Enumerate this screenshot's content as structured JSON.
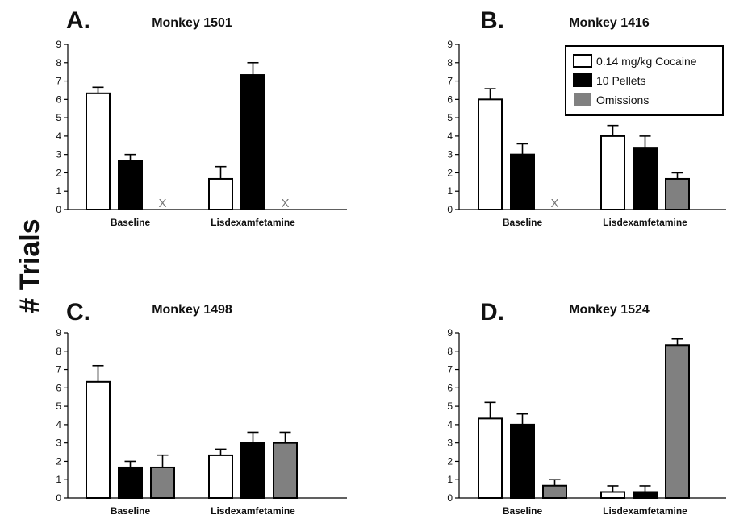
{
  "figure": {
    "ylabel": "# Trials",
    "legend": {
      "entries": [
        {
          "label": "0.14 mg/kg Cocaine",
          "color": "#ffffff"
        },
        {
          "label": "10 Pellets",
          "color": "#000000"
        },
        {
          "label": "Omissions",
          "color": "#808080"
        }
      ]
    }
  },
  "chart_data": [
    {
      "type": "bar",
      "panel_label": "A.",
      "title": "Monkey 1501",
      "categories": [
        "Baseline",
        "Lisdexamfetamine"
      ],
      "ylim": [
        0,
        9
      ],
      "yticks": [
        "0",
        "1",
        "2",
        "3",
        "4",
        "5",
        "6",
        "7",
        "8",
        "9"
      ],
      "series": [
        {
          "name": "0.14 mg/kg Cocaine",
          "color": "#ffffff",
          "values": [
            6.33,
            1.67
          ],
          "errors": [
            0.33,
            0.67
          ]
        },
        {
          "name": "10 Pellets",
          "color": "#000000",
          "values": [
            2.67,
            7.33
          ],
          "errors": [
            0.33,
            0.67
          ]
        },
        {
          "name": "Omissions",
          "color": "#808080",
          "values": [
            null,
            null
          ],
          "errors": [
            null,
            null
          ],
          "missing_marker": "X"
        }
      ]
    },
    {
      "type": "bar",
      "panel_label": "B.",
      "title": "Monkey 1416",
      "categories": [
        "Baseline",
        "Lisdexamfetamine"
      ],
      "ylim": [
        0,
        9
      ],
      "yticks": [
        "0",
        "1",
        "2",
        "3",
        "4",
        "5",
        "6",
        "7",
        "8",
        "9"
      ],
      "legend": "top-right",
      "series": [
        {
          "name": "0.14 mg/kg Cocaine",
          "color": "#ffffff",
          "values": [
            6.0,
            4.0
          ],
          "errors": [
            0.58,
            0.58
          ]
        },
        {
          "name": "10 Pellets",
          "color": "#000000",
          "values": [
            3.0,
            3.33
          ],
          "errors": [
            0.58,
            0.67
          ]
        },
        {
          "name": "Omissions",
          "color": "#808080",
          "values": [
            null,
            1.67
          ],
          "errors": [
            null,
            0.33
          ],
          "missing_marker": "X"
        }
      ]
    },
    {
      "type": "bar",
      "panel_label": "C.",
      "title": "Monkey 1498",
      "categories": [
        "Baseline",
        "Lisdexamfetamine"
      ],
      "ylim": [
        0,
        9
      ],
      "yticks": [
        "0",
        "1",
        "2",
        "3",
        "4",
        "5",
        "6",
        "7",
        "8",
        "9"
      ],
      "series": [
        {
          "name": "0.14 mg/kg Cocaine",
          "color": "#ffffff",
          "values": [
            6.33,
            2.33
          ],
          "errors": [
            0.88,
            0.33
          ]
        },
        {
          "name": "10 Pellets",
          "color": "#000000",
          "values": [
            1.67,
            3.0
          ],
          "errors": [
            0.33,
            0.58
          ]
        },
        {
          "name": "Omissions",
          "color": "#808080",
          "values": [
            1.67,
            3.0
          ],
          "errors": [
            0.67,
            0.58
          ]
        }
      ]
    },
    {
      "type": "bar",
      "panel_label": "D.",
      "title": "Monkey 1524",
      "categories": [
        "Baseline",
        "Lisdexamfetamine"
      ],
      "ylim": [
        0,
        9
      ],
      "yticks": [
        "0",
        "1",
        "2",
        "3",
        "4",
        "5",
        "6",
        "7",
        "8",
        "9"
      ],
      "series": [
        {
          "name": "0.14 mg/kg Cocaine",
          "color": "#ffffff",
          "values": [
            4.33,
            0.33
          ],
          "errors": [
            0.88,
            0.33
          ]
        },
        {
          "name": "10 Pellets",
          "color": "#000000",
          "values": [
            4.0,
            0.33
          ],
          "errors": [
            0.58,
            0.33
          ]
        },
        {
          "name": "Omissions",
          "color": "#808080",
          "values": [
            0.67,
            8.33
          ],
          "errors": [
            0.33,
            0.33
          ]
        }
      ]
    }
  ]
}
